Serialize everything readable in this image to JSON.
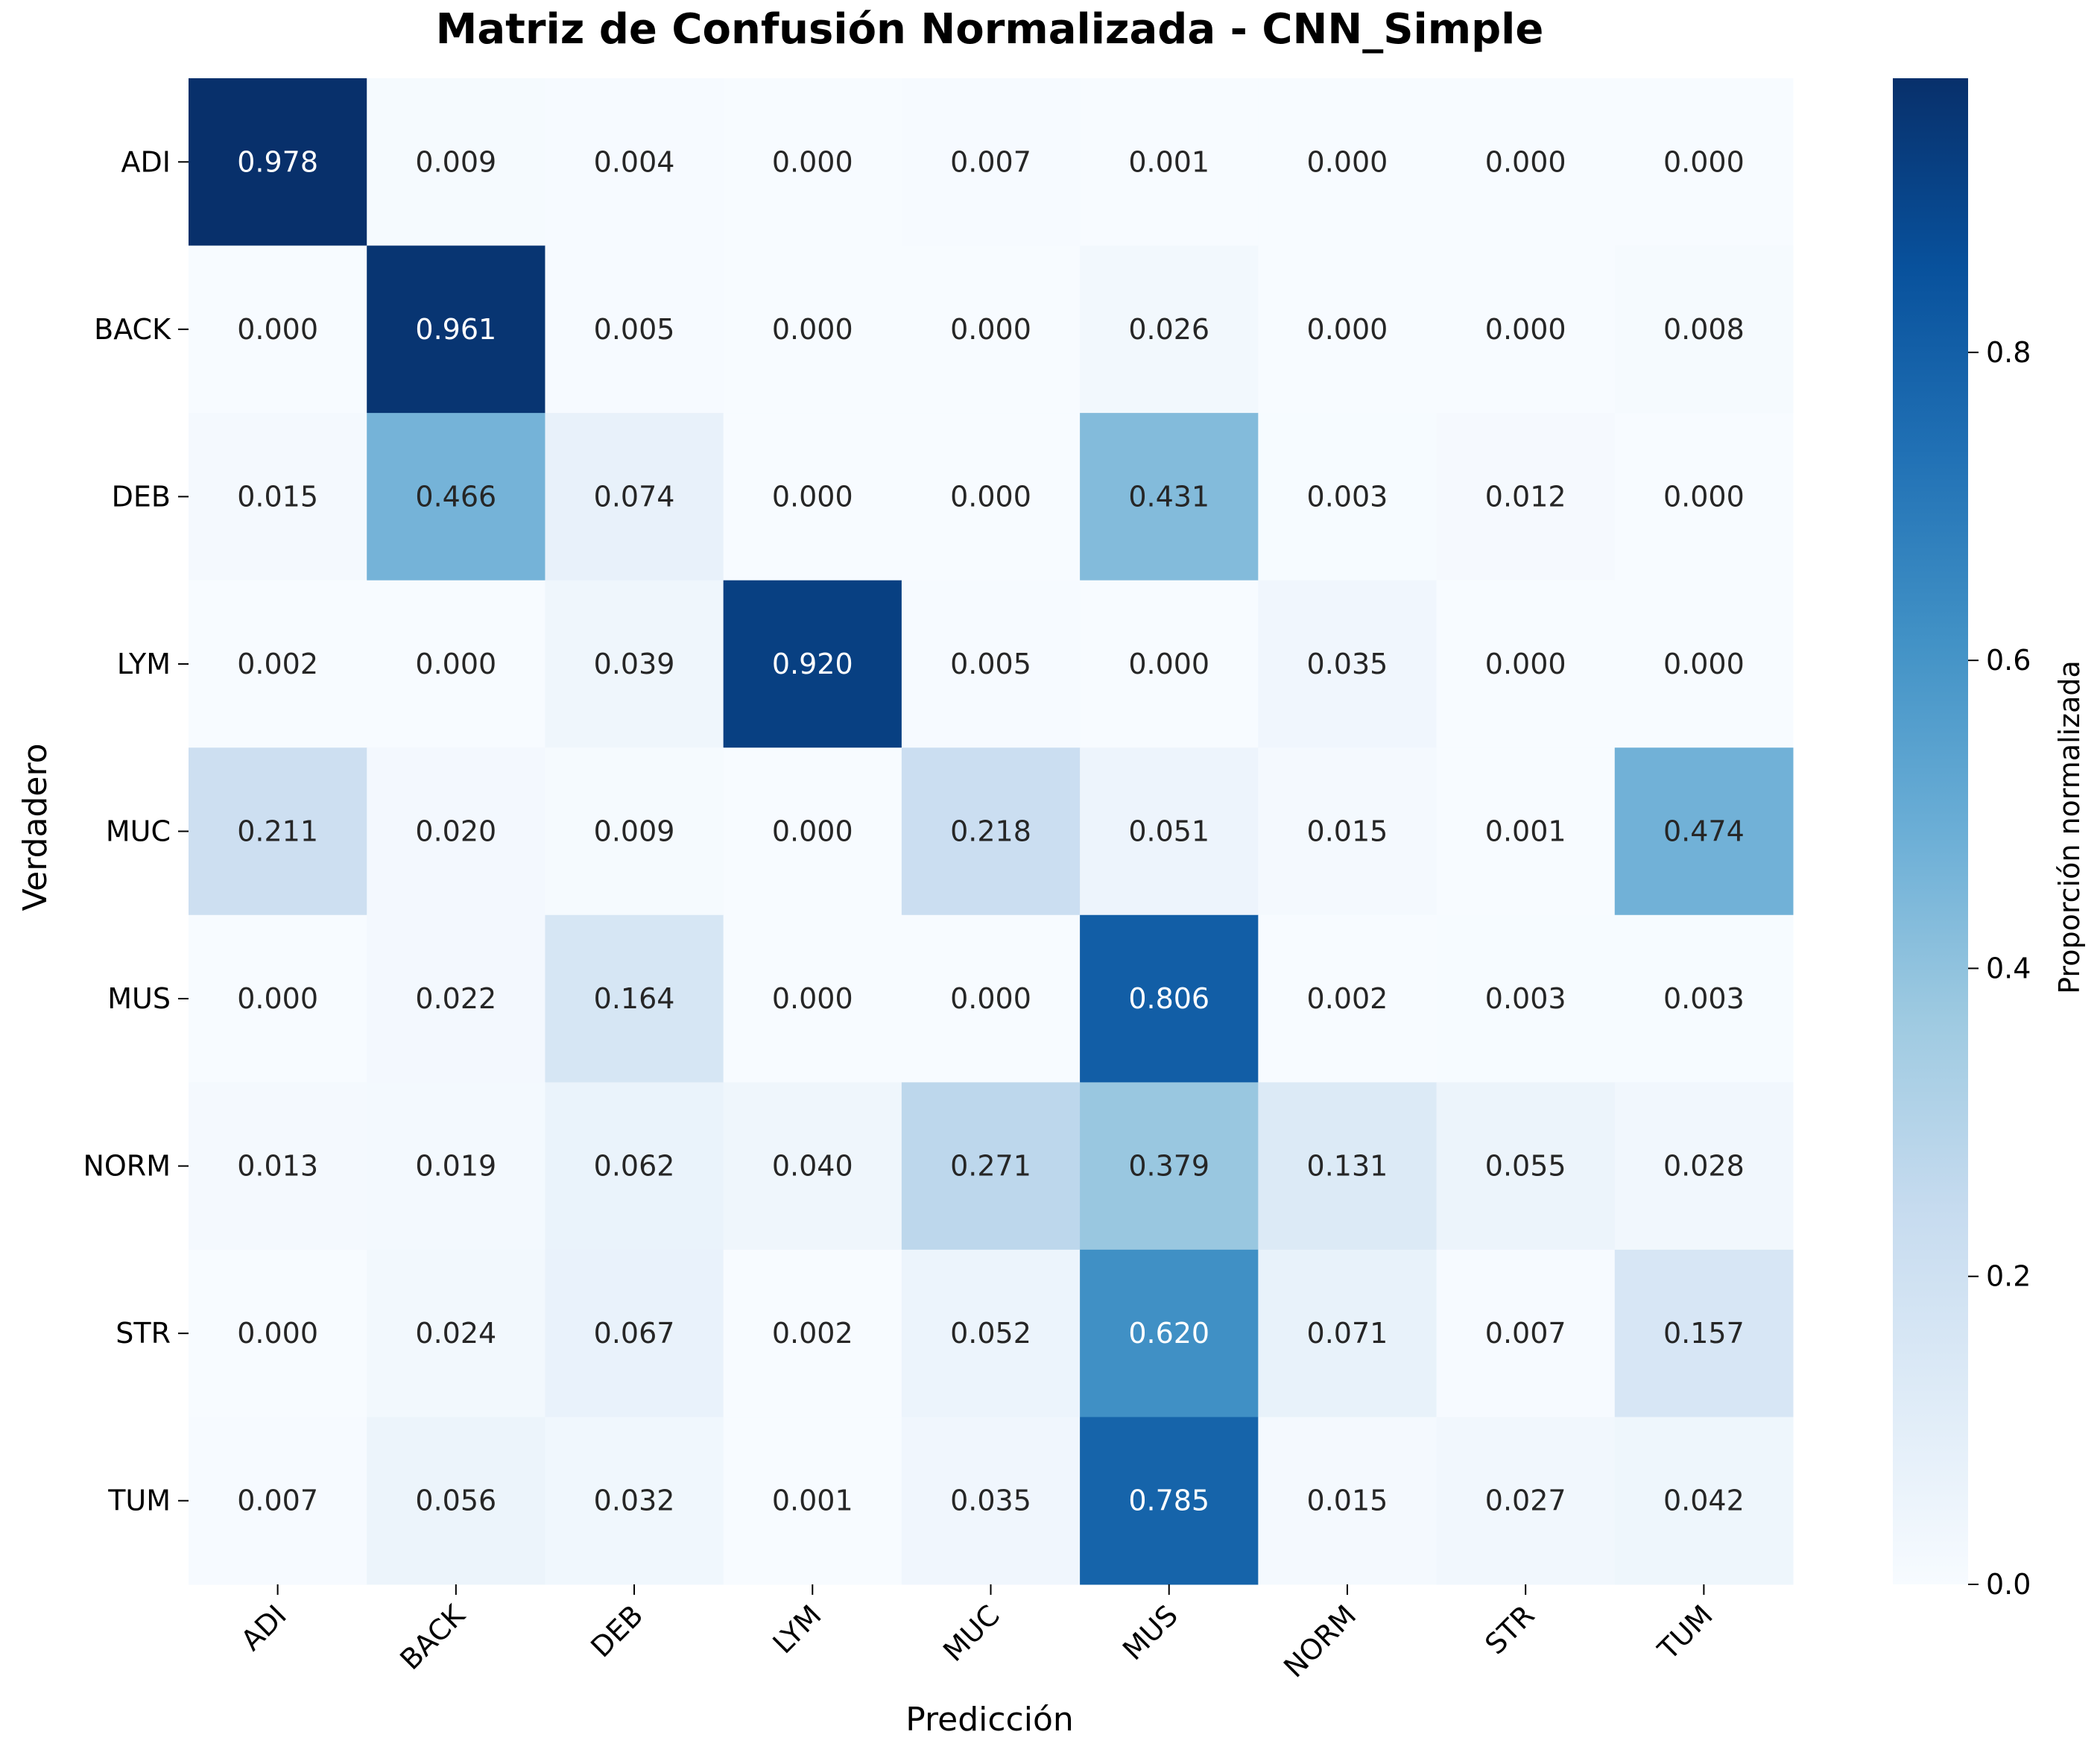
{
  "chart_data": {
    "type": "heatmap",
    "title": "Matriz de Confusión Normalizada - CNN_Simple",
    "xlabel": "Predicción",
    "ylabel": "Verdadero",
    "x_categories": [
      "ADI",
      "BACK",
      "DEB",
      "LYM",
      "MUC",
      "MUS",
      "NORM",
      "STR",
      "TUM"
    ],
    "y_categories": [
      "ADI",
      "BACK",
      "DEB",
      "LYM",
      "MUC",
      "MUS",
      "NORM",
      "STR",
      "TUM"
    ],
    "values": [
      [
        0.978,
        0.009,
        0.004,
        0.0,
        0.007,
        0.001,
        0.0,
        0.0,
        0.0
      ],
      [
        0.0,
        0.961,
        0.005,
        0.0,
        0.0,
        0.026,
        0.0,
        0.0,
        0.008
      ],
      [
        0.015,
        0.466,
        0.074,
        0.0,
        0.0,
        0.431,
        0.003,
        0.012,
        0.0
      ],
      [
        0.002,
        0.0,
        0.039,
        0.92,
        0.005,
        0.0,
        0.035,
        0.0,
        0.0
      ],
      [
        0.211,
        0.02,
        0.009,
        0.0,
        0.218,
        0.051,
        0.015,
        0.001,
        0.474
      ],
      [
        0.0,
        0.022,
        0.164,
        0.0,
        0.0,
        0.806,
        0.002,
        0.003,
        0.003
      ],
      [
        0.013,
        0.019,
        0.062,
        0.04,
        0.271,
        0.379,
        0.131,
        0.055,
        0.028
      ],
      [
        0.0,
        0.024,
        0.067,
        0.002,
        0.052,
        0.62,
        0.071,
        0.007,
        0.157
      ],
      [
        0.007,
        0.056,
        0.032,
        0.001,
        0.035,
        0.785,
        0.015,
        0.027,
        0.042
      ]
    ],
    "colorbar": {
      "label": "Proporción normalizada",
      "range": [
        0,
        0.978
      ],
      "ticks": [
        0.0,
        0.2,
        0.4,
        0.6,
        0.8
      ],
      "tick_labels": [
        "0.0",
        "0.2",
        "0.4",
        "0.6",
        "0.8"
      ],
      "colormap": "Blues"
    },
    "cell_format": "3 decimals"
  }
}
